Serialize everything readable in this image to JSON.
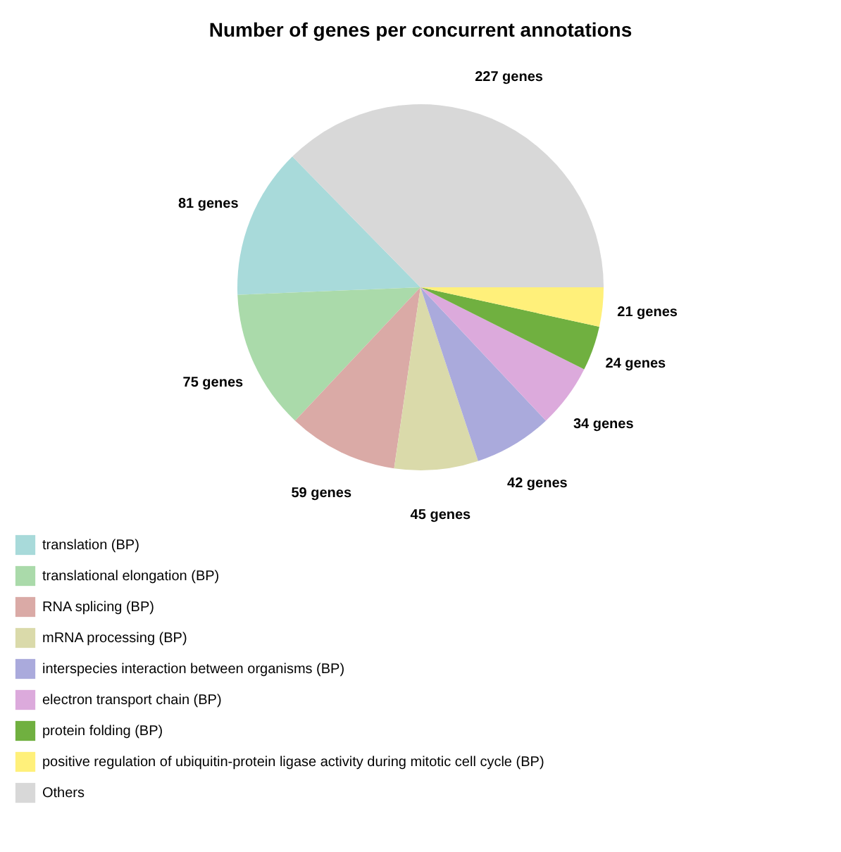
{
  "chart_data": {
    "type": "pie",
    "title": "Number of genes per concurrent annotations",
    "categories": [
      "translation (BP)",
      "translational elongation (BP)",
      "RNA splicing (BP)",
      "mRNA processing (BP)",
      "interspecies interaction between organisms (BP)",
      "electron transport chain (BP)",
      "protein folding (BP)",
      "positive regulation of ubiquitin-protein ligase activity during mitotic cell cycle (BP)",
      "Others"
    ],
    "values": [
      81,
      75,
      59,
      45,
      42,
      34,
      24,
      21,
      227
    ],
    "colors": [
      "#a8dada",
      "#aadaaa",
      "#daaaa6",
      "#dadaaa",
      "#aaaadc",
      "#dcaadc",
      "#70b040",
      "#fff07a",
      "#d8d8d8"
    ],
    "value_labels": [
      "81 genes",
      "75 genes",
      "59 genes",
      "45 genes",
      "42 genes",
      "34 genes",
      "24 genes",
      "21 genes",
      "227 genes"
    ],
    "legend": "bottom left"
  }
}
